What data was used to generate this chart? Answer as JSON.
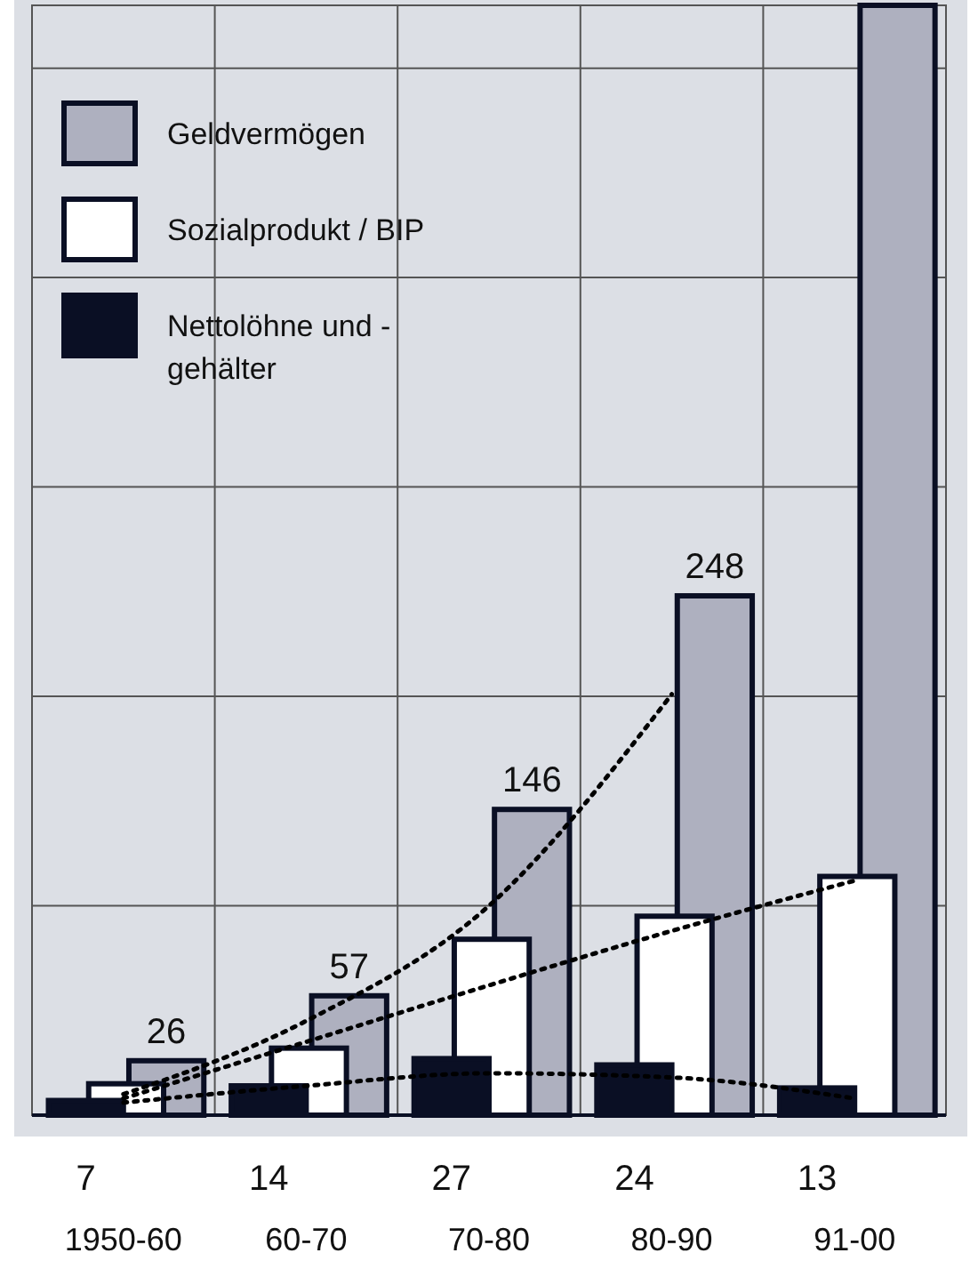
{
  "chart_data": {
    "type": "bar",
    "categories": [
      "1950-60",
      "60-70",
      "70-80",
      "80-90",
      "91-00"
    ],
    "series": [
      {
        "name": "Geldvermögen",
        "color": "#aeb0bf",
        "values": [
          26,
          57,
          146,
          248,
          530
        ],
        "value_labels": [
          "26",
          "57",
          "146",
          "248",
          null
        ]
      },
      {
        "name": "Sozialprodukt / BIP",
        "color": "#ffffff",
        "values": [
          15,
          32,
          84,
          95,
          114
        ]
      },
      {
        "name": "Nettolöhne und - gehälter",
        "color": "#0a0f24",
        "values": [
          7,
          14,
          27,
          24,
          13
        ],
        "value_labels": [
          "7",
          "14",
          "27",
          "24",
          "13"
        ]
      },
      {
        "type": "line",
        "color": "#000000",
        "line_style": "dotted",
        "values": [
          10,
          45,
          100,
          201,
          null
        ]
      },
      {
        "type": "line",
        "color": "#000000",
        "line_style": "dotted",
        "values": [
          8,
          35,
          62,
          88,
          112
        ]
      },
      {
        "type": "line",
        "color": "#000000",
        "line_style": "dotted",
        "values": [
          6,
          14,
          20,
          18,
          8
        ]
      }
    ],
    "ylim": [
      0,
      530
    ],
    "yticks": [
      {
        "value": 100,
        "label": null
      },
      {
        "value": 200,
        "label": null
      },
      {
        "value": 300,
        "label": null
      },
      {
        "value": 400,
        "label": null
      },
      {
        "value": 500,
        "label": null
      }
    ],
    "tick_labels": "x",
    "grid": true,
    "legend": "top left"
  }
}
